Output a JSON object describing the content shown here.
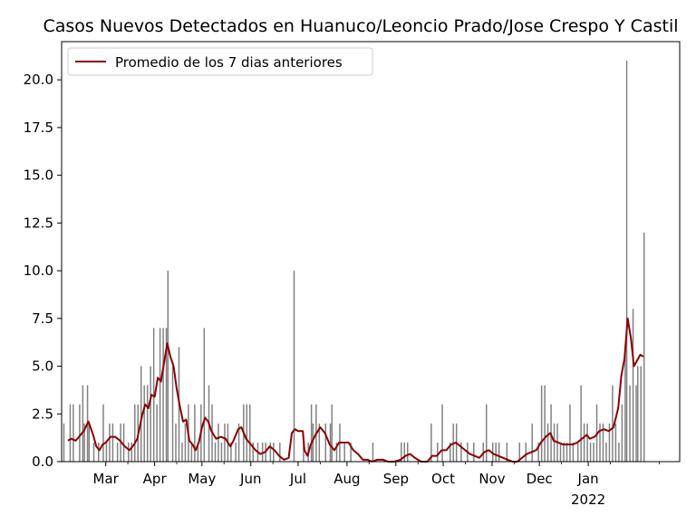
{
  "chart_data": {
    "type": "bar",
    "title": "Casos Nuevos Detectados en Huanuco/Leoncio Prado/Jose Crespo Y Castil",
    "xlabel": "",
    "ylabel": "",
    "ylim": [
      0,
      22.0
    ],
    "xlim": [
      "2021-02-01",
      "2022-02-28"
    ],
    "grid": false,
    "legend": {
      "placement": "top-left",
      "entries": [
        "Promedio de los 7 dias anteriores"
      ]
    },
    "colors": {
      "bars": "#808080",
      "line": "#8b0000"
    },
    "y_ticks": [
      "0.0",
      "2.5",
      "5.0",
      "7.5",
      "10.0",
      "12.5",
      "15.0",
      "17.5",
      "20.0"
    ],
    "x_ticks": [
      {
        "label": "Mar",
        "date": "2021-03-01"
      },
      {
        "label": "Apr",
        "date": "2021-04-01"
      },
      {
        "label": "May",
        "date": "2021-05-01"
      },
      {
        "label": "Jun",
        "date": "2021-06-01"
      },
      {
        "label": "Jul",
        "date": "2021-07-01"
      },
      {
        "label": "Aug",
        "date": "2021-08-01"
      },
      {
        "label": "Sep",
        "date": "2021-09-01"
      },
      {
        "label": "Oct",
        "date": "2021-10-01"
      },
      {
        "label": "Nov",
        "date": "2021-11-01"
      },
      {
        "label": "Dec",
        "date": "2021-12-01"
      },
      {
        "label": "Jan",
        "date": "2022-01-01",
        "sublabel": "2022"
      }
    ],
    "series": [
      {
        "name": "Casos Nuevos",
        "type": "bar",
        "points": [
          [
            "2021-02-02",
            2
          ],
          [
            "2021-02-06",
            3
          ],
          [
            "2021-02-08",
            3
          ],
          [
            "2021-02-12",
            3
          ],
          [
            "2021-02-14",
            4
          ],
          [
            "2021-02-15",
            2
          ],
          [
            "2021-02-17",
            4
          ],
          [
            "2021-02-18",
            2
          ],
          [
            "2021-02-21",
            1
          ],
          [
            "2021-02-24",
            1
          ],
          [
            "2021-02-27",
            3
          ],
          [
            "2021-03-01",
            1
          ],
          [
            "2021-03-03",
            2
          ],
          [
            "2021-03-05",
            2
          ],
          [
            "2021-03-08",
            1
          ],
          [
            "2021-03-10",
            2
          ],
          [
            "2021-03-12",
            2
          ],
          [
            "2021-03-15",
            1
          ],
          [
            "2021-03-17",
            1
          ],
          [
            "2021-03-19",
            3
          ],
          [
            "2021-03-21",
            3
          ],
          [
            "2021-03-23",
            5
          ],
          [
            "2021-03-25",
            4
          ],
          [
            "2021-03-27",
            4
          ],
          [
            "2021-03-29",
            5
          ],
          [
            "2021-03-31",
            7
          ],
          [
            "2021-04-02",
            3
          ],
          [
            "2021-04-04",
            7
          ],
          [
            "2021-04-06",
            7
          ],
          [
            "2021-04-08",
            7
          ],
          [
            "2021-04-09",
            10
          ],
          [
            "2021-04-12",
            5
          ],
          [
            "2021-04-14",
            2
          ],
          [
            "2021-04-16",
            6
          ],
          [
            "2021-04-18",
            1
          ],
          [
            "2021-04-20",
            2
          ],
          [
            "2021-04-22",
            3
          ],
          [
            "2021-04-24",
            1
          ],
          [
            "2021-04-26",
            3
          ],
          [
            "2021-04-28",
            1
          ],
          [
            "2021-04-30",
            3
          ],
          [
            "2021-05-02",
            7
          ],
          [
            "2021-05-05",
            4
          ],
          [
            "2021-05-07",
            3
          ],
          [
            "2021-05-09",
            1
          ],
          [
            "2021-05-11",
            2
          ],
          [
            "2021-05-13",
            1
          ],
          [
            "2021-05-15",
            2
          ],
          [
            "2021-05-17",
            2
          ],
          [
            "2021-05-19",
            1
          ],
          [
            "2021-05-22",
            1
          ],
          [
            "2021-05-24",
            2
          ],
          [
            "2021-05-27",
            3
          ],
          [
            "2021-05-29",
            3
          ],
          [
            "2021-05-31",
            3
          ],
          [
            "2021-06-02",
            1
          ],
          [
            "2021-06-05",
            1
          ],
          [
            "2021-06-08",
            1
          ],
          [
            "2021-06-10",
            1
          ],
          [
            "2021-06-13",
            1
          ],
          [
            "2021-06-15",
            1
          ],
          [
            "2021-06-19",
            1
          ],
          [
            "2021-06-28",
            10
          ],
          [
            "2021-07-04",
            1
          ],
          [
            "2021-07-07",
            1
          ],
          [
            "2021-07-09",
            3
          ],
          [
            "2021-07-10",
            2
          ],
          [
            "2021-07-12",
            3
          ],
          [
            "2021-07-14",
            2
          ],
          [
            "2021-07-18",
            2
          ],
          [
            "2021-07-21",
            2
          ],
          [
            "2021-07-22",
            3
          ],
          [
            "2021-07-25",
            1
          ],
          [
            "2021-07-27",
            2
          ],
          [
            "2021-07-30",
            1
          ],
          [
            "2021-08-03",
            1
          ],
          [
            "2021-08-17",
            1
          ],
          [
            "2021-09-04",
            1
          ],
          [
            "2021-09-06",
            1
          ],
          [
            "2021-09-08",
            1
          ],
          [
            "2021-09-23",
            2
          ],
          [
            "2021-09-27",
            1
          ],
          [
            "2021-09-30",
            3
          ],
          [
            "2021-10-05",
            1
          ],
          [
            "2021-10-07",
            2
          ],
          [
            "2021-10-09",
            2
          ],
          [
            "2021-10-12",
            1
          ],
          [
            "2021-10-16",
            1
          ],
          [
            "2021-10-20",
            1
          ],
          [
            "2021-10-26",
            1
          ],
          [
            "2021-10-28",
            3
          ],
          [
            "2021-11-01",
            1
          ],
          [
            "2021-11-03",
            1
          ],
          [
            "2021-11-05",
            1
          ],
          [
            "2021-11-10",
            1
          ],
          [
            "2021-11-18",
            1
          ],
          [
            "2021-11-22",
            1
          ],
          [
            "2021-11-26",
            2
          ],
          [
            "2021-11-30",
            1
          ],
          [
            "2021-12-02",
            4
          ],
          [
            "2021-12-04",
            4
          ],
          [
            "2021-12-06",
            2
          ],
          [
            "2021-12-08",
            3
          ],
          [
            "2021-12-10",
            2
          ],
          [
            "2021-12-12",
            2
          ],
          [
            "2021-12-14",
            1
          ],
          [
            "2021-12-16",
            1
          ],
          [
            "2021-12-18",
            1
          ],
          [
            "2021-12-20",
            3
          ],
          [
            "2021-12-22",
            1
          ],
          [
            "2021-12-25",
            1
          ],
          [
            "2021-12-27",
            4
          ],
          [
            "2021-12-29",
            2
          ],
          [
            "2021-12-31",
            2
          ],
          [
            "2022-01-02",
            1
          ],
          [
            "2022-01-04",
            1
          ],
          [
            "2022-01-06",
            3
          ],
          [
            "2022-01-08",
            2
          ],
          [
            "2022-01-10",
            2
          ],
          [
            "2022-01-12",
            1
          ],
          [
            "2022-01-14",
            2
          ],
          [
            "2022-01-16",
            4
          ],
          [
            "2022-01-18",
            2
          ],
          [
            "2022-01-20",
            1
          ],
          [
            "2022-01-22",
            3
          ],
          [
            "2022-01-24",
            6
          ],
          [
            "2022-01-25",
            21
          ],
          [
            "2022-01-27",
            4
          ],
          [
            "2022-01-29",
            8
          ],
          [
            "2022-01-31",
            4
          ],
          [
            "2022-02-01",
            5
          ],
          [
            "2022-02-03",
            5
          ],
          [
            "2022-02-05",
            12
          ]
        ]
      },
      {
        "name": "Promedio de los 7 dias anteriores",
        "type": "line",
        "points": [
          [
            "2021-02-05",
            1.1
          ],
          [
            "2021-02-07",
            1.2
          ],
          [
            "2021-02-10",
            1.1
          ],
          [
            "2021-02-12",
            1.3
          ],
          [
            "2021-02-15",
            1.6
          ],
          [
            "2021-02-18",
            2.1
          ],
          [
            "2021-02-21",
            1.4
          ],
          [
            "2021-02-23",
            0.8
          ],
          [
            "2021-02-25",
            0.6
          ],
          [
            "2021-02-27",
            0.9
          ],
          [
            "2021-03-01",
            1.0
          ],
          [
            "2021-03-04",
            1.3
          ],
          [
            "2021-03-07",
            1.3
          ],
          [
            "2021-03-10",
            1.1
          ],
          [
            "2021-03-13",
            0.8
          ],
          [
            "2021-03-16",
            0.6
          ],
          [
            "2021-03-19",
            0.9
          ],
          [
            "2021-03-21",
            1.2
          ],
          [
            "2021-03-24",
            2.4
          ],
          [
            "2021-03-26",
            3.0
          ],
          [
            "2021-03-28",
            2.8
          ],
          [
            "2021-03-30",
            3.5
          ],
          [
            "2021-04-01",
            3.4
          ],
          [
            "2021-04-03",
            4.4
          ],
          [
            "2021-04-05",
            4.2
          ],
          [
            "2021-04-07",
            5.2
          ],
          [
            "2021-04-09",
            6.2
          ],
          [
            "2021-04-11",
            5.5
          ],
          [
            "2021-04-13",
            5.0
          ],
          [
            "2021-04-15",
            3.8
          ],
          [
            "2021-04-17",
            2.9
          ],
          [
            "2021-04-19",
            2.1
          ],
          [
            "2021-04-21",
            2.2
          ],
          [
            "2021-04-23",
            1.1
          ],
          [
            "2021-04-25",
            0.9
          ],
          [
            "2021-04-27",
            0.6
          ],
          [
            "2021-04-29",
            1.0
          ],
          [
            "2021-05-01",
            1.8
          ],
          [
            "2021-05-03",
            2.3
          ],
          [
            "2021-05-05",
            2.1
          ],
          [
            "2021-05-07",
            1.6
          ],
          [
            "2021-05-10",
            1.2
          ],
          [
            "2021-05-13",
            1.3
          ],
          [
            "2021-05-16",
            1.2
          ],
          [
            "2021-05-19",
            0.8
          ],
          [
            "2021-05-21",
            1.1
          ],
          [
            "2021-05-24",
            1.7
          ],
          [
            "2021-05-26",
            1.8
          ],
          [
            "2021-05-29",
            1.2
          ],
          [
            "2021-06-01",
            0.9
          ],
          [
            "2021-06-04",
            0.6
          ],
          [
            "2021-06-07",
            0.4
          ],
          [
            "2021-06-10",
            0.5
          ],
          [
            "2021-06-13",
            0.8
          ],
          [
            "2021-06-16",
            0.6
          ],
          [
            "2021-06-19",
            0.3
          ],
          [
            "2021-06-22",
            0.1
          ],
          [
            "2021-06-25",
            0.2
          ],
          [
            "2021-06-27",
            1.5
          ],
          [
            "2021-06-29",
            1.7
          ],
          [
            "2021-07-01",
            1.6
          ],
          [
            "2021-07-04",
            1.6
          ],
          [
            "2021-07-05",
            0.6
          ],
          [
            "2021-07-07",
            0.3
          ],
          [
            "2021-07-09",
            0.9
          ],
          [
            "2021-07-12",
            1.4
          ],
          [
            "2021-07-15",
            1.8
          ],
          [
            "2021-07-18",
            1.5
          ],
          [
            "2021-07-21",
            0.9
          ],
          [
            "2021-07-24",
            0.6
          ],
          [
            "2021-07-27",
            1.0
          ],
          [
            "2021-07-30",
            1.0
          ],
          [
            "2021-08-02",
            1.0
          ],
          [
            "2021-08-05",
            0.6
          ],
          [
            "2021-08-08",
            0.4
          ],
          [
            "2021-08-11",
            0.1
          ],
          [
            "2021-08-14",
            0.1
          ],
          [
            "2021-08-17",
            0.0
          ],
          [
            "2021-08-20",
            0.1
          ],
          [
            "2021-08-24",
            0.1
          ],
          [
            "2021-08-27",
            0.0
          ],
          [
            "2021-08-31",
            0.0
          ],
          [
            "2021-09-04",
            0.1
          ],
          [
            "2021-09-07",
            0.3
          ],
          [
            "2021-09-10",
            0.4
          ],
          [
            "2021-09-13",
            0.2
          ],
          [
            "2021-09-17",
            0.0
          ],
          [
            "2021-09-21",
            0.0
          ],
          [
            "2021-09-24",
            0.3
          ],
          [
            "2021-09-27",
            0.3
          ],
          [
            "2021-09-30",
            0.6
          ],
          [
            "2021-10-03",
            0.6
          ],
          [
            "2021-10-06",
            0.9
          ],
          [
            "2021-10-09",
            1.0
          ],
          [
            "2021-10-12",
            0.8
          ],
          [
            "2021-10-15",
            0.6
          ],
          [
            "2021-10-18",
            0.4
          ],
          [
            "2021-10-21",
            0.3
          ],
          [
            "2021-10-24",
            0.2
          ],
          [
            "2021-10-27",
            0.5
          ],
          [
            "2021-10-30",
            0.6
          ],
          [
            "2021-11-02",
            0.4
          ],
          [
            "2021-11-05",
            0.3
          ],
          [
            "2021-11-08",
            0.2
          ],
          [
            "2021-11-11",
            0.1
          ],
          [
            "2021-11-14",
            0.0
          ],
          [
            "2021-11-17",
            0.0
          ],
          [
            "2021-11-20",
            0.2
          ],
          [
            "2021-11-23",
            0.4
          ],
          [
            "2021-11-26",
            0.5
          ],
          [
            "2021-11-29",
            0.6
          ],
          [
            "2021-12-02",
            1.0
          ],
          [
            "2021-12-05",
            1.3
          ],
          [
            "2021-12-08",
            1.5
          ],
          [
            "2021-12-10",
            1.1
          ],
          [
            "2021-12-13",
            1.0
          ],
          [
            "2021-12-16",
            0.9
          ],
          [
            "2021-12-19",
            0.9
          ],
          [
            "2021-12-22",
            0.9
          ],
          [
            "2021-12-25",
            1.0
          ],
          [
            "2021-12-28",
            1.2
          ],
          [
            "2021-12-31",
            1.4
          ],
          [
            "2022-01-02",
            1.2
          ],
          [
            "2022-01-05",
            1.3
          ],
          [
            "2022-01-08",
            1.6
          ],
          [
            "2022-01-11",
            1.7
          ],
          [
            "2022-01-14",
            1.6
          ],
          [
            "2022-01-17",
            1.8
          ],
          [
            "2022-01-20",
            2.8
          ],
          [
            "2022-01-22",
            4.5
          ],
          [
            "2022-01-24",
            5.4
          ],
          [
            "2022-01-26",
            7.5
          ],
          [
            "2022-01-28",
            6.5
          ],
          [
            "2022-01-30",
            5.0
          ],
          [
            "2022-02-01",
            5.3
          ],
          [
            "2022-02-03",
            5.6
          ],
          [
            "2022-02-05",
            5.5
          ]
        ]
      }
    ]
  }
}
